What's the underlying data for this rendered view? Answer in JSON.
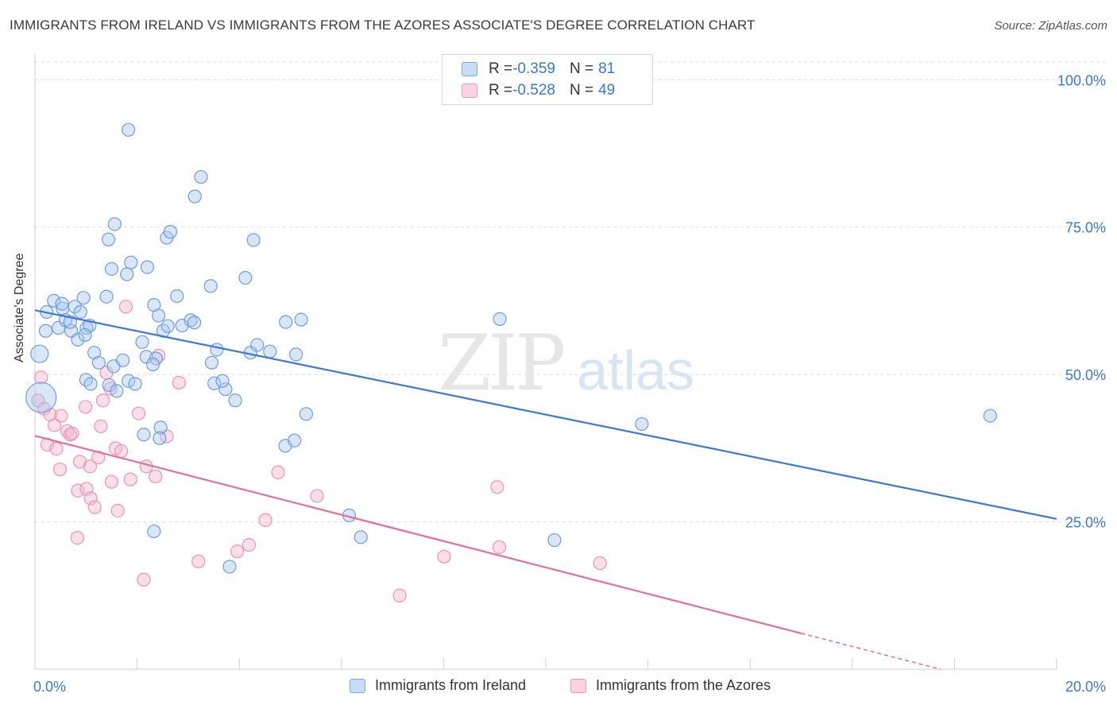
{
  "title": "IMMIGRANTS FROM IRELAND VS IMMIGRANTS FROM THE AZORES ASSOCIATE'S DEGREE CORRELATION CHART",
  "source": "Source: ZipAtlas.com",
  "watermark": {
    "zip": "ZIP",
    "atlas": "atlas"
  },
  "legend": {
    "rows": [
      {
        "r_label": "R = ",
        "r_value": "-0.359",
        "n_label": "N = ",
        "n_value": "81",
        "color": "#a8c8f0"
      },
      {
        "r_label": "R = ",
        "r_value": "-0.528",
        "n_label": "N = ",
        "n_value": "49",
        "color": "#f6b8cb"
      }
    ]
  },
  "bottom_legend": [
    "Immigrants from Ireland",
    "Immigrants from the Azores"
  ],
  "chart_data": {
    "type": "scatter",
    "xlabel": "",
    "ylabel": "Associate's Degree",
    "xlim": [
      0,
      20
    ],
    "ylim": [
      0,
      103
    ],
    "x_tick_labels": [
      "0.0%",
      "20.0%"
    ],
    "y_ticks": [
      25,
      50,
      75,
      100
    ],
    "y_tick_labels": [
      "25.0%",
      "50.0%",
      "75.0%",
      "100.0%"
    ],
    "grid": "horizontal dashed",
    "colors": {
      "blue": "#3b78d8",
      "pink": "#e46f98",
      "blue_fill": "#a8c8f0",
      "pink_fill": "#f6b8cb",
      "tick_text": "#3b78c7"
    },
    "series": [
      {
        "name": "Immigrants from Ireland",
        "trend": {
          "x": [
            0.0,
            20.0
          ],
          "y": [
            60.9,
            25.5
          ]
        },
        "points": [
          [
            0.12,
            46.1
          ],
          [
            0.09,
            53.5
          ],
          [
            0.21,
            57.4
          ],
          [
            0.23,
            60.6
          ],
          [
            0.37,
            62.5
          ],
          [
            0.46,
            57.9
          ],
          [
            0.54,
            61.2
          ],
          [
            0.6,
            59.2
          ],
          [
            0.71,
            57.4
          ],
          [
            0.69,
            58.9
          ],
          [
            0.78,
            61.5
          ],
          [
            0.89,
            60.6
          ],
          [
            0.95,
            63.0
          ],
          [
            1.01,
            57.9
          ],
          [
            1.0,
            49.1
          ],
          [
            1.09,
            48.4
          ],
          [
            1.07,
            58.3
          ],
          [
            1.16,
            53.7
          ],
          [
            1.25,
            52.0
          ],
          [
            1.45,
            48.2
          ],
          [
            1.54,
            51.4
          ],
          [
            1.72,
            52.4
          ],
          [
            1.83,
            48.9
          ],
          [
            1.96,
            48.4
          ],
          [
            2.13,
            39.8
          ],
          [
            2.18,
            53.0
          ],
          [
            2.37,
            52.7
          ],
          [
            2.31,
            51.7
          ],
          [
            2.42,
            60.0
          ],
          [
            2.51,
            57.4
          ],
          [
            2.88,
            58.3
          ],
          [
            3.05,
            59.2
          ],
          [
            3.12,
            58.8
          ],
          [
            3.56,
            54.2
          ],
          [
            3.46,
            52.0
          ],
          [
            3.51,
            48.5
          ],
          [
            3.73,
            47.5
          ],
          [
            3.67,
            48.9
          ],
          [
            3.92,
            45.6
          ],
          [
            4.22,
            53.7
          ],
          [
            4.35,
            55.0
          ],
          [
            4.6,
            53.9
          ],
          [
            4.91,
            58.9
          ],
          [
            5.21,
            59.3
          ],
          [
            5.11,
            53.4
          ],
          [
            2.1,
            55.5
          ],
          [
            2.6,
            58.2
          ],
          [
            1.6,
            47.2
          ],
          [
            0.53,
            62.0
          ],
          [
            0.84,
            55.9
          ],
          [
            0.98,
            56.7
          ],
          [
            1.4,
            63.2
          ],
          [
            1.8,
            67.0
          ],
          [
            2.2,
            68.2
          ],
          [
            1.5,
            67.9
          ],
          [
            1.88,
            69.0
          ],
          [
            2.58,
            73.2
          ],
          [
            2.65,
            74.2
          ],
          [
            1.44,
            72.9
          ],
          [
            1.56,
            75.5
          ],
          [
            2.33,
            61.8
          ],
          [
            2.78,
            63.3
          ],
          [
            3.44,
            65.0
          ],
          [
            4.12,
            66.4
          ],
          [
            4.28,
            72.8
          ],
          [
            3.13,
            80.2
          ],
          [
            3.25,
            83.5
          ],
          [
            1.83,
            91.5
          ],
          [
            2.46,
            41.0
          ],
          [
            2.44,
            39.2
          ],
          [
            4.9,
            37.9
          ],
          [
            5.08,
            38.8
          ],
          [
            5.31,
            43.3
          ],
          [
            6.15,
            26.1
          ],
          [
            6.38,
            22.4
          ],
          [
            9.1,
            59.4
          ],
          [
            10.17,
            21.9
          ],
          [
            11.88,
            41.6
          ],
          [
            18.7,
            43.0
          ],
          [
            2.33,
            23.4
          ],
          [
            3.81,
            17.4
          ]
        ]
      },
      {
        "name": "Immigrants from the Azores",
        "trend": {
          "x": [
            0.0,
            15.0
          ],
          "y": [
            39.6,
            6.1
          ]
        },
        "dashed_extension": {
          "x": [
            15.0,
            20.0
          ],
          "y": [
            6.1,
            -5.1
          ]
        },
        "points": [
          [
            0.06,
            45.6
          ],
          [
            0.12,
            49.5
          ],
          [
            0.18,
            44.2
          ],
          [
            0.3,
            43.2
          ],
          [
            0.38,
            41.4
          ],
          [
            0.24,
            38.1
          ],
          [
            0.42,
            37.4
          ],
          [
            0.49,
            33.9
          ],
          [
            0.51,
            43.0
          ],
          [
            0.63,
            40.4
          ],
          [
            0.69,
            39.8
          ],
          [
            0.73,
            40.0
          ],
          [
            0.84,
            30.3
          ],
          [
            0.88,
            35.2
          ],
          [
            0.99,
            44.5
          ],
          [
            1.01,
            30.6
          ],
          [
            1.09,
            29.0
          ],
          [
            1.08,
            34.4
          ],
          [
            1.17,
            27.5
          ],
          [
            1.24,
            35.9
          ],
          [
            1.29,
            41.2
          ],
          [
            1.33,
            45.6
          ],
          [
            1.4,
            50.3
          ],
          [
            1.48,
            47.6
          ],
          [
            1.5,
            31.8
          ],
          [
            1.58,
            37.5
          ],
          [
            1.62,
            26.9
          ],
          [
            1.69,
            37.0
          ],
          [
            1.78,
            61.5
          ],
          [
            1.87,
            32.2
          ],
          [
            2.03,
            43.4
          ],
          [
            2.18,
            34.4
          ],
          [
            2.36,
            32.7
          ],
          [
            2.42,
            53.2
          ],
          [
            2.58,
            39.5
          ],
          [
            2.82,
            48.6
          ],
          [
            3.2,
            18.3
          ],
          [
            3.96,
            20.0
          ],
          [
            4.19,
            21.1
          ],
          [
            4.51,
            25.3
          ],
          [
            4.76,
            33.4
          ],
          [
            5.52,
            29.4
          ],
          [
            7.14,
            12.5
          ],
          [
            8.01,
            19.1
          ],
          [
            9.05,
            30.9
          ],
          [
            9.09,
            20.7
          ],
          [
            11.06,
            18.0
          ],
          [
            2.13,
            15.2
          ],
          [
            0.83,
            22.3
          ]
        ]
      }
    ]
  }
}
